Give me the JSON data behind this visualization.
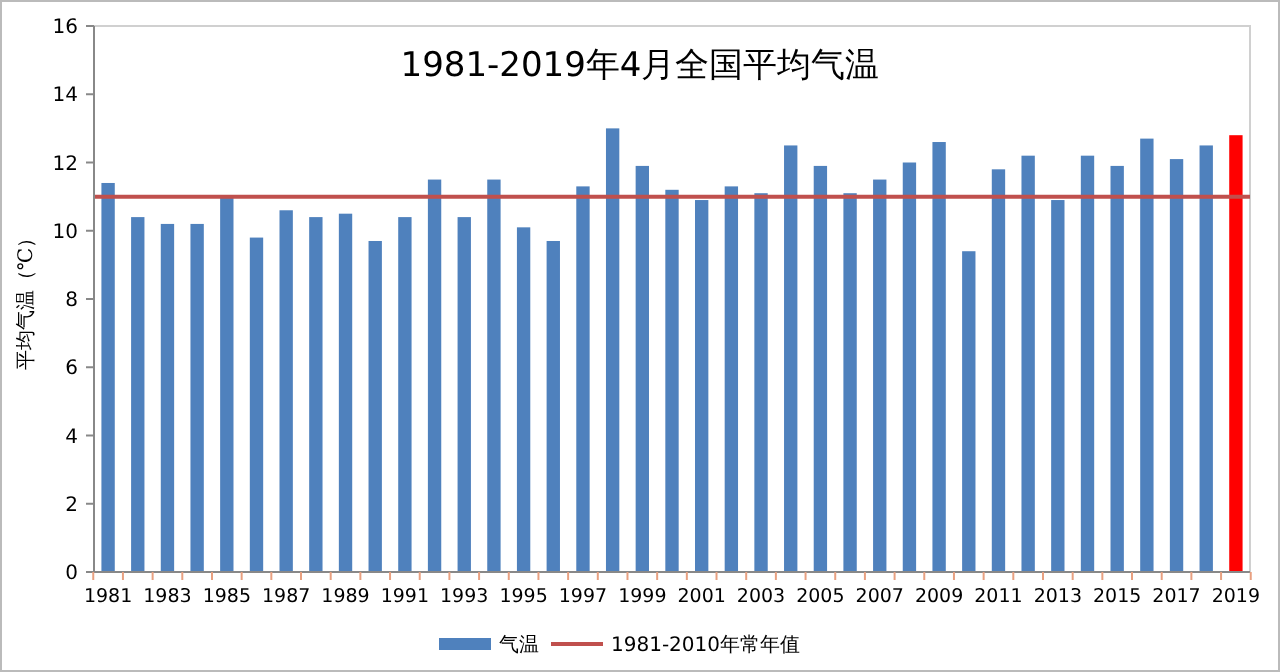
{
  "chart_data": {
    "type": "bar",
    "title": "1981-2019年4月全国平均气温",
    "ylabel": "平均气温（℃）",
    "categories": [
      "1981",
      null,
      "1983",
      null,
      "1985",
      null,
      "1987",
      null,
      "1989",
      null,
      "1991",
      null,
      "1993",
      null,
      "1995",
      null,
      "1997",
      null,
      "1999",
      null,
      "2001",
      null,
      "2003",
      null,
      "2005",
      null,
      "2007",
      null,
      "2009",
      null,
      "2011",
      null,
      "2013",
      null,
      "2015",
      null,
      "2017",
      null,
      "2019"
    ],
    "series": [
      {
        "name": "气温",
        "color": "#4f81bd",
        "colors": [
          "#4f81bd",
          "#4f81bd",
          "#4f81bd",
          "#4f81bd",
          "#4f81bd",
          "#4f81bd",
          "#4f81bd",
          "#4f81bd",
          "#4f81bd",
          "#4f81bd",
          "#4f81bd",
          "#4f81bd",
          "#4f81bd",
          "#4f81bd",
          "#4f81bd",
          "#4f81bd",
          "#4f81bd",
          "#4f81bd",
          "#4f81bd",
          "#4f81bd",
          "#4f81bd",
          "#4f81bd",
          "#4f81bd",
          "#4f81bd",
          "#4f81bd",
          "#4f81bd",
          "#4f81bd",
          "#4f81bd",
          "#4f81bd",
          "#4f81bd",
          "#4f81bd",
          "#4f81bd",
          "#4f81bd",
          "#4f81bd",
          "#4f81bd",
          "#4f81bd",
          "#4f81bd",
          "#4f81bd",
          "#ff0000"
        ],
        "values": [
          11.4,
          10.4,
          10.2,
          10.2,
          11.0,
          9.8,
          10.6,
          10.4,
          10.5,
          9.7,
          10.4,
          11.5,
          10.4,
          11.5,
          10.1,
          9.7,
          11.3,
          13.0,
          11.9,
          11.2,
          10.9,
          11.3,
          11.1,
          12.5,
          11.9,
          11.1,
          11.5,
          12.0,
          12.6,
          9.4,
          11.8,
          12.2,
          10.9,
          12.2,
          11.9,
          12.7,
          12.1,
          12.5,
          12.8
        ]
      }
    ],
    "ref_lines": [
      {
        "axis": "y",
        "value": 11.0,
        "label": "1981-2010年常年值",
        "color": "#c0504d"
      }
    ],
    "ylim": [
      0,
      16
    ],
    "yticks": [
      0,
      2,
      4,
      6,
      8,
      10,
      12,
      14,
      16
    ],
    "legend": "bottom"
  }
}
